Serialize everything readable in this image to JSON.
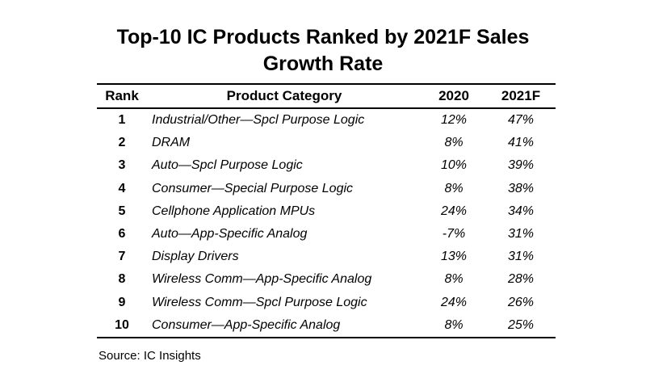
{
  "title_line1": "Top-10 IC Products Ranked by 2021F Sales",
  "title_line2": "Growth Rate",
  "table": {
    "headers": [
      "Rank",
      "Product Category",
      "2020",
      "2021F"
    ],
    "rows": [
      {
        "rank": "1",
        "category": "Industrial/Other—Spcl Purpose Logic",
        "y2020": "12%",
        "y2021f": "47%"
      },
      {
        "rank": "2",
        "category": "DRAM",
        "y2020": "8%",
        "y2021f": "41%"
      },
      {
        "rank": "3",
        "category": "Auto—Spcl Purpose Logic",
        "y2020": "10%",
        "y2021f": "39%"
      },
      {
        "rank": "4",
        "category": "Consumer—Special Purpose Logic",
        "y2020": "8%",
        "y2021f": "38%"
      },
      {
        "rank": "5",
        "category": "Cellphone Application MPUs",
        "y2020": "24%",
        "y2021f": "34%"
      },
      {
        "rank": "6",
        "category": "Auto—App-Specific Analog",
        "y2020": "-7%",
        "y2021f": "31%"
      },
      {
        "rank": "7",
        "category": "Display Drivers",
        "y2020": "13%",
        "y2021f": "31%"
      },
      {
        "rank": "8",
        "category": "Wireless Comm—App-Specific Analog",
        "y2020": "8%",
        "y2021f": "28%"
      },
      {
        "rank": "9",
        "category": "Wireless Comm—Spcl Purpose Logic",
        "y2020": "24%",
        "y2021f": "26%"
      },
      {
        "rank": "10",
        "category": "Consumer—App-Specific Analog",
        "y2020": "8%",
        "y2021f": "25%"
      }
    ]
  },
  "source": "Source:  IC Insights"
}
